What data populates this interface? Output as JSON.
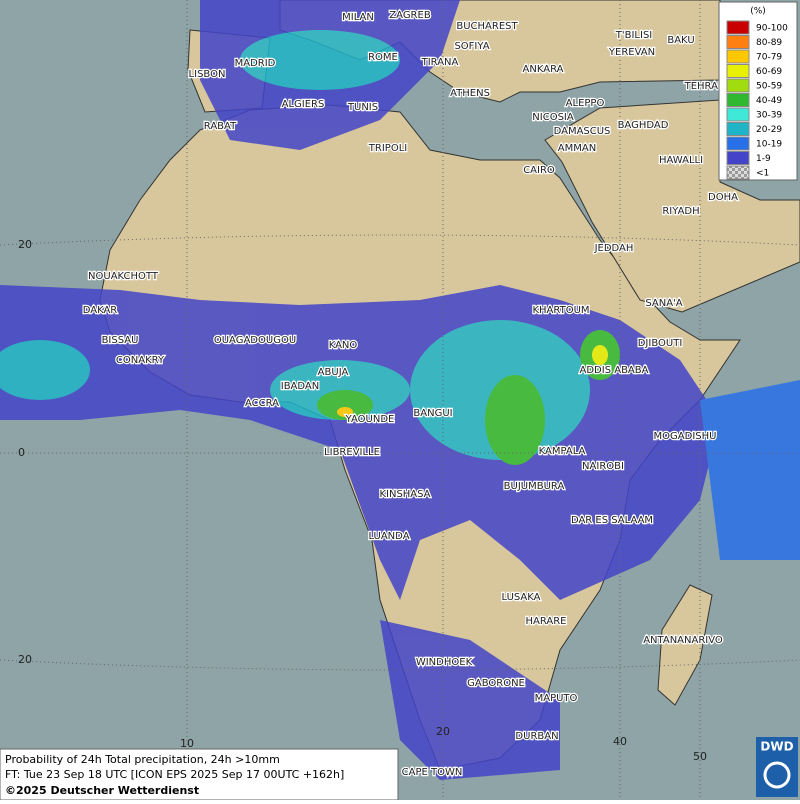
{
  "map": {
    "cities": [
      "MILAN",
      "ZAGREB",
      "BUCHAREST",
      "SOFIYA",
      "ROME",
      "MADRID",
      "TIRANA",
      "ANKARA",
      "LISBON",
      "ATHENS",
      "ALGIERS",
      "TUNIS",
      "ALEPPO",
      "RABAT",
      "NICOSIA",
      "BAGHDAD",
      "DAMASCUS",
      "AMMAN",
      "TRIPOLI",
      "HAWALLI",
      "CAIRO",
      "DOHA",
      "RIYADH",
      "JEDDAH",
      "NOUAKCHOTT",
      "KHARTOUM",
      "DAKAR",
      "SANA'A",
      "BISSAU",
      "OUAGADOUGOU",
      "KANO",
      "DJIBOUTI",
      "CONAKRY",
      "ABUJA",
      "ADDIS ABABA",
      "IBADAN",
      "ACCRA",
      "YAOUNDE",
      "BANGUI",
      "MOGADISHU",
      "LIBREVILLE",
      "KAMPALA",
      "NAIROBI",
      "BUJUMBURA",
      "KINSHASA",
      "DAR ES SALAAM",
      "LUANDA",
      "LUSAKA",
      "HARARE",
      "ANTANANARIVO",
      "WINDHOEK",
      "GABORONE",
      "MAPUTO",
      "DURBAN",
      "CAPE TOWN",
      "T'BILISI",
      "YEREVAN",
      "BAKU",
      "TEHRAN"
    ],
    "latitude_labels": [
      20,
      0,
      20
    ],
    "longitude_labels": [
      10,
      20,
      40,
      50
    ]
  },
  "legend": {
    "title": "(%)",
    "items": [
      {
        "label": "90-100",
        "color": "#c80000"
      },
      {
        "label": "80-89",
        "color": "#ff7f10"
      },
      {
        "label": "70-79",
        "color": "#ffc800"
      },
      {
        "label": "60-69",
        "color": "#e6f000"
      },
      {
        "label": "50-59",
        "color": "#a0dc10"
      },
      {
        "label": "40-49",
        "color": "#30b830"
      },
      {
        "label": "30-39",
        "color": "#40e8d8"
      },
      {
        "label": "20-29",
        "color": "#20b4c8"
      },
      {
        "label": "10-19",
        "color": "#2870e8"
      },
      {
        "label": "1-9",
        "color": "#4444c8"
      },
      {
        "label": "<1",
        "color": "checker"
      }
    ]
  },
  "caption": {
    "lines": [
      "Probability of 24h Total precipitation, 24h >10mm",
      "FT: Tue 23 Sep 18 UTC [ICON EPS 2025 Sep 17 00UTC +162h]",
      "©2025 Deutscher Wetterdienst"
    ]
  },
  "logo": "DWD"
}
